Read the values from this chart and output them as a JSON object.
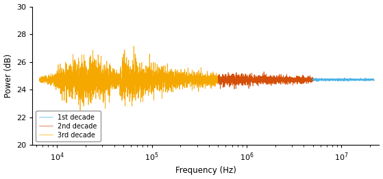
{
  "title": "",
  "xlabel": "Frequency (Hz)",
  "ylabel": "Power (dB)",
  "ylim": [
    20,
    30
  ],
  "xlim": [
    5500,
    25000000.0
  ],
  "yticks": [
    20,
    22,
    24,
    26,
    28,
    30
  ],
  "mean_power": 24.72,
  "color_1st": "#4db3e6",
  "color_2nd": "#d4500a",
  "color_3rd": "#f5a800",
  "color_ref": "#555555",
  "legend_labels": [
    "1st decade",
    "2nd decade",
    "3rd decade"
  ],
  "seed": 7
}
